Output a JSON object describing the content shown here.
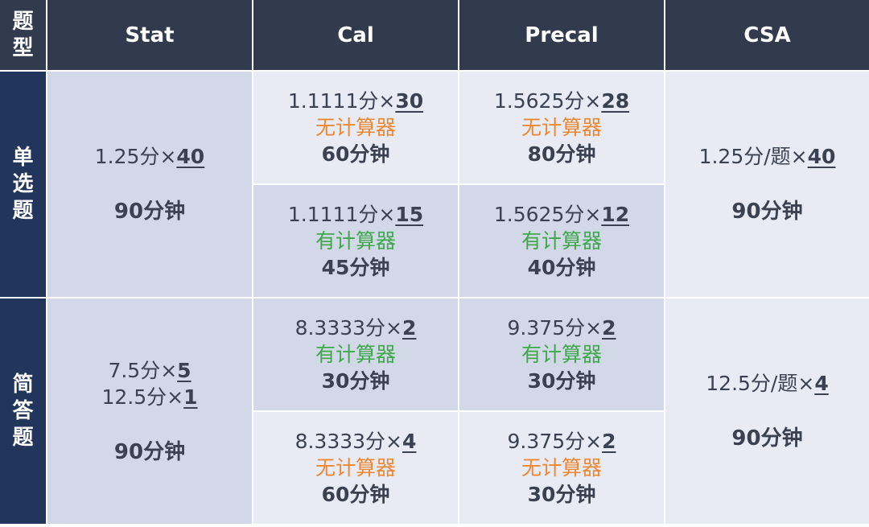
{
  "header": {
    "corner_chars": [
      "题",
      "型"
    ],
    "columns": [
      "Stat",
      "Cal",
      "Precal",
      "CSA"
    ]
  },
  "rows": {
    "mcq_chars": [
      "单",
      "选",
      "题"
    ],
    "frq_chars": [
      "简",
      "答",
      "题"
    ]
  },
  "mcq": {
    "stat": {
      "score": "1.25分×",
      "count": "40",
      "time": "90分钟"
    },
    "cal_nocalc": {
      "score": "1.1111分×",
      "count": "30",
      "calc": "无计算器",
      "time": "60分钟"
    },
    "cal_calc": {
      "score": "1.1111分×",
      "count": "15",
      "calc": "有计算器",
      "time": "45分钟"
    },
    "precal_nocalc": {
      "score": "1.5625分×",
      "count": "28",
      "calc": "无计算器",
      "time": "80分钟"
    },
    "precal_calc": {
      "score": "1.5625分×",
      "count": "12",
      "calc": "有计算器",
      "time": "40分钟"
    },
    "csa": {
      "score": "1.25分/题×",
      "count": "40",
      "time": "90分钟"
    }
  },
  "frq": {
    "stat": {
      "score1": "7.5分×",
      "count1": "5",
      "score2": "12.5分×",
      "count2": "1",
      "time": "90分钟"
    },
    "cal_calc": {
      "score": "8.3333分×",
      "count": "2",
      "calc": "有计算器",
      "time": "30分钟"
    },
    "cal_nocalc": {
      "score": "8.3333分×",
      "count": "4",
      "calc": "无计算器",
      "time": "60分钟"
    },
    "precal_calc": {
      "score": "9.375分×",
      "count": "2",
      "calc": "有计算器",
      "time": "30分钟"
    },
    "precal_nocalc": {
      "score": "9.375分×",
      "count": "2",
      "calc": "无计算器",
      "time": "30分钟"
    },
    "csa": {
      "score": "12.5分/题×",
      "count": "4",
      "time": "90分钟"
    }
  },
  "colors": {
    "header_bg": "#323a4d",
    "side_bg": "#22355a",
    "light_cell": "#e8ebf3",
    "mid_cell": "#d2d8e7",
    "no_calculator": "#ee8732",
    "with_calculator": "#3ea84a"
  }
}
